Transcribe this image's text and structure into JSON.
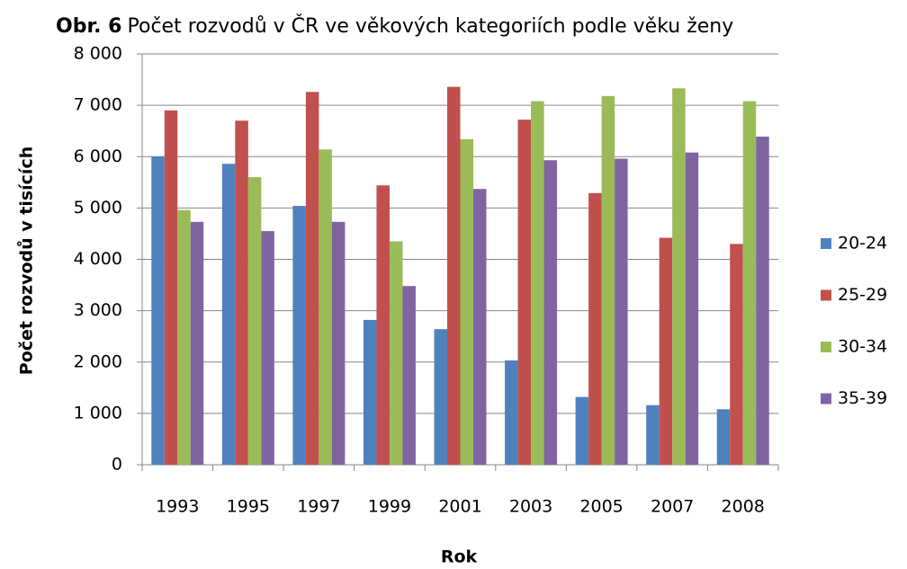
{
  "chart_data": {
    "type": "bar",
    "title_label": "Obr. 6",
    "title": "Počet rozvodů v ČR ve věkových kategoriích podle věku ženy",
    "y_label": "Počet rozvodů v tisících",
    "x_label": "Rok",
    "categories": [
      "1993",
      "1995",
      "1997",
      "1999",
      "2001",
      "2003",
      "2005",
      "2007",
      "2008"
    ],
    "series": [
      {
        "name": "20-24",
        "color": "#4f81bd",
        "values": [
          6000,
          5860,
          5040,
          2820,
          2640,
          2030,
          1320,
          1160,
          1080
        ]
      },
      {
        "name": "25-29",
        "color": "#c0504d",
        "values": [
          6900,
          6700,
          7260,
          5440,
          7360,
          6720,
          5290,
          4420,
          4300
        ]
      },
      {
        "name": "30-34",
        "color": "#9bbb59",
        "values": [
          4960,
          5600,
          6140,
          4350,
          6340,
          7080,
          7180,
          7330,
          7080
        ]
      },
      {
        "name": "35-39",
        "color": "#8064a2",
        "values": [
          4730,
          4550,
          4730,
          3480,
          5370,
          5930,
          5960,
          6080,
          6390
        ]
      }
    ],
    "ylim": [
      0,
      8000
    ],
    "yticks": [
      0,
      {
        "value": 1000,
        "label": "1 000"
      },
      {
        "value": 2000,
        "label": "2 000"
      },
      {
        "value": 3000,
        "label": "3 000"
      },
      {
        "value": 4000,
        "label": "4 000"
      },
      {
        "value": 5000,
        "label": "5 000"
      },
      {
        "value": 6000,
        "label": "6 000"
      },
      {
        "value": 7000,
        "label": "7 000"
      },
      {
        "value": 8000,
        "label": "8 000"
      }
    ],
    "grid": true,
    "legend": "right"
  }
}
